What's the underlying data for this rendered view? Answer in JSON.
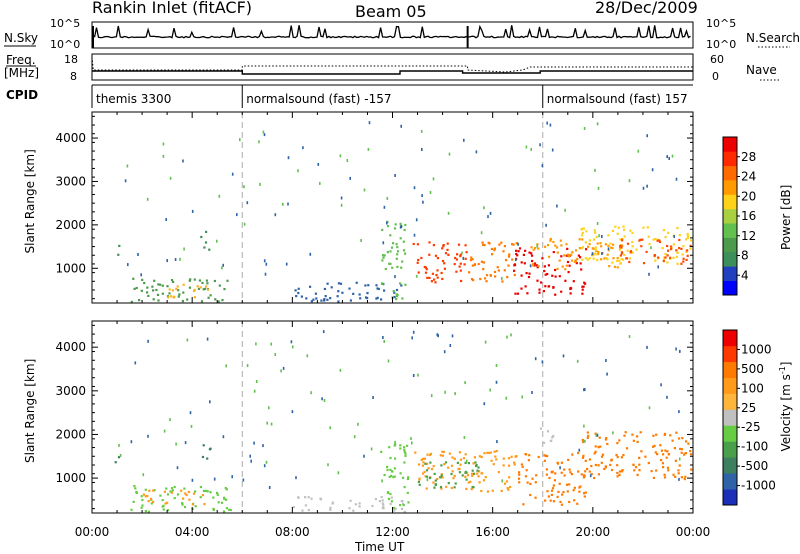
{
  "header": {
    "station": "Rankin Inlet (fitACF)",
    "beam": "Beam 05",
    "date": "28/Dec/2009"
  },
  "top_panels": {
    "nsky_label": "N.Sky",
    "nsky_ticks": [
      "10^5",
      "10^0"
    ],
    "nsearch_ticks": [
      "10^5",
      "10^0"
    ],
    "nsearch_label": "N.Search",
    "freq_label_1": "Freq.",
    "freq_label_2": "[MHz]",
    "freq_ticks": [
      "18",
      "8"
    ],
    "nave_ticks": [
      "60",
      "0"
    ],
    "nave_label": "Nave",
    "cpid_label": "CPID",
    "cpid_segments": [
      {
        "label": "themis 3300",
        "start_h": 0
      },
      {
        "label": "normalsound (fast) -157",
        "start_h": 6
      },
      {
        "label": "normalsound (fast) 157",
        "start_h": 18
      }
    ]
  },
  "colorbars": {
    "power": {
      "label": "Power [dB]",
      "ticks": [
        "28",
        "24",
        "20",
        "16",
        "12",
        "8",
        "4"
      ],
      "colors": [
        "#0000ff",
        "#2040c0",
        "#3d8f5a",
        "#4c9a4c",
        "#62c04f",
        "#a8d040",
        "#ffd21a",
        "#ff9a00",
        "#ff6a00",
        "#ff2a00",
        "#ee0000"
      ]
    },
    "velocity": {
      "label": "Velocity [m s",
      "label_sup": "-1",
      "label_end": "]",
      "ticks": [
        "1000",
        "500",
        "100",
        "25",
        "-25",
        "-100",
        "-500",
        "-1000"
      ],
      "colors": [
        "#1c2fb8",
        "#2f63a8",
        "#3d7f5e",
        "#4aa04a",
        "#66cc44",
        "#c0c0c0",
        "#ffb43c",
        "#ff9a1a",
        "#ff7a00",
        "#ff3a00",
        "#ee0000"
      ]
    }
  },
  "chart_data": [
    {
      "type": "heatmap",
      "name": "power",
      "ylabel": "Slant Range [km]",
      "yticks": [
        1000,
        2000,
        3000,
        4000
      ],
      "ylim": [
        200,
        4600
      ],
      "xlim_hours": [
        0,
        24
      ],
      "mode_change_hours": [
        6,
        18
      ],
      "echo_regions": [
        {
          "t0": 0.9,
          "t1": 1.15,
          "r0": 1300,
          "r1": 1700,
          "color": "#3d8f5a"
        },
        {
          "t0": 4.3,
          "t1": 4.7,
          "r0": 1400,
          "r1": 1900,
          "color": "#3d8f5a"
        },
        {
          "t0": 1.5,
          "t1": 5.5,
          "r0": 250,
          "r1": 800,
          "color": "#4c9a4c"
        },
        {
          "t0": 3.0,
          "t1": 4.8,
          "r0": 350,
          "r1": 700,
          "color": "#ffb020"
        },
        {
          "t0": 8.0,
          "t1": 12.5,
          "r0": 250,
          "r1": 700,
          "color": "#2f63a8"
        },
        {
          "t0": 11.5,
          "t1": 12.5,
          "r0": 300,
          "r1": 2100,
          "color": "#62c04f"
        },
        {
          "t0": 12.8,
          "t1": 15.0,
          "r0": 700,
          "r1": 1650,
          "color": "#ff3a00"
        },
        {
          "t0": 15.0,
          "t1": 17.0,
          "r0": 700,
          "r1": 1650,
          "color": "#ff7a00"
        },
        {
          "t0": 16.8,
          "t1": 19.7,
          "r0": 400,
          "r1": 1500,
          "color": "#ee0000"
        },
        {
          "t0": 17.5,
          "t1": 21.5,
          "r0": 1000,
          "r1": 1700,
          "color": "#ff9a00"
        },
        {
          "t0": 19.5,
          "t1": 23.9,
          "r0": 1100,
          "r1": 2000,
          "color": "#ffd21a"
        },
        {
          "t0": 21.0,
          "t1": 23.9,
          "r0": 1100,
          "r1": 1700,
          "color": "#ff4a00"
        }
      ]
    },
    {
      "type": "heatmap",
      "name": "velocity",
      "ylabel": "Slant Range [km]",
      "yticks": [
        1000,
        2000,
        3000,
        4000
      ],
      "ylim": [
        200,
        4600
      ],
      "xlim_hours": [
        0,
        24
      ],
      "xticks": [
        "00:00",
        "04:00",
        "08:00",
        "12:00",
        "16:00",
        "20:00",
        "00:00"
      ],
      "xlabel": "Time UT",
      "mode_change_hours": [
        6,
        18
      ],
      "echo_regions": [
        {
          "t0": 0.9,
          "t1": 1.15,
          "r0": 1300,
          "r1": 1700,
          "color": "#3d7f5e"
        },
        {
          "t0": 4.3,
          "t1": 4.7,
          "r0": 1400,
          "r1": 1900,
          "color": "#3d7f5e"
        },
        {
          "t0": 1.5,
          "t1": 5.5,
          "r0": 250,
          "r1": 850,
          "color": "#66cc44"
        },
        {
          "t0": 2.0,
          "t1": 4.5,
          "r0": 400,
          "r1": 750,
          "color": "#ff9a1a"
        },
        {
          "t0": 8.0,
          "t1": 12.5,
          "r0": 250,
          "r1": 600,
          "color": "#c0c0c0"
        },
        {
          "t0": 11.5,
          "t1": 12.6,
          "r0": 300,
          "r1": 1800,
          "color": "#66cc44"
        },
        {
          "t0": 12.8,
          "t1": 17.0,
          "r0": 700,
          "r1": 1650,
          "color": "#ff9a1a"
        },
        {
          "t0": 13.0,
          "t1": 15.5,
          "r0": 800,
          "r1": 1400,
          "color": "#4aa04a"
        },
        {
          "t0": 17.0,
          "t1": 19.7,
          "r0": 400,
          "r1": 1600,
          "color": "#ff7a00"
        },
        {
          "t0": 19.5,
          "t1": 23.9,
          "r0": 1000,
          "r1": 2100,
          "color": "#ff7a00"
        },
        {
          "t0": 17.8,
          "t1": 18.4,
          "r0": 1800,
          "r1": 2300,
          "color": "#c0c0c0"
        }
      ]
    }
  ]
}
